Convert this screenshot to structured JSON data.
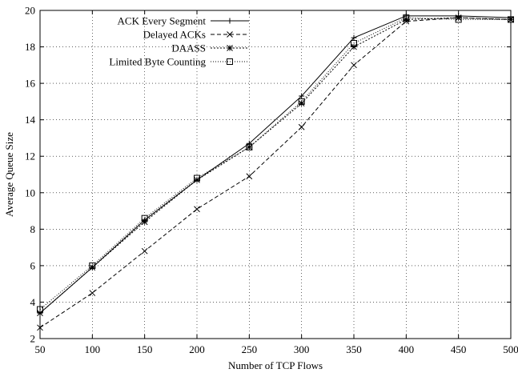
{
  "chart_data": {
    "type": "line",
    "title": "",
    "xlabel": "Number of TCP Flows",
    "ylabel": "Average Queue Size",
    "xlim": [
      50,
      500
    ],
    "ylim": [
      2,
      20
    ],
    "xticks": [
      50,
      100,
      150,
      200,
      250,
      300,
      350,
      400,
      450,
      500
    ],
    "yticks": [
      2,
      4,
      6,
      8,
      10,
      12,
      14,
      16,
      18,
      20
    ],
    "grid": true,
    "legend_position": "top-right",
    "x": [
      50,
      100,
      150,
      200,
      250,
      300,
      350,
      400,
      450,
      500
    ],
    "series": [
      {
        "name": "ACK Every Segment",
        "values": [
          3.4,
          5.9,
          8.5,
          10.7,
          12.7,
          15.3,
          18.5,
          19.7,
          19.7,
          19.6
        ],
        "marker": "plus",
        "dash": "solid"
      },
      {
        "name": "Delayed ACKs",
        "values": [
          2.6,
          4.5,
          6.8,
          9.1,
          10.9,
          13.6,
          17.0,
          19.4,
          19.6,
          19.5
        ],
        "marker": "cross",
        "dash": "dashed"
      },
      {
        "name": "DAASS",
        "values": [
          3.4,
          5.9,
          8.4,
          10.7,
          12.5,
          14.9,
          18.0,
          19.5,
          19.6,
          19.5
        ],
        "marker": "star",
        "dash": "dotted-dash"
      },
      {
        "name": "Limited Byte Counting",
        "values": [
          3.6,
          6.0,
          8.6,
          10.8,
          12.5,
          15.0,
          18.2,
          19.6,
          19.5,
          19.5
        ],
        "marker": "square",
        "dash": "dotted"
      }
    ]
  }
}
